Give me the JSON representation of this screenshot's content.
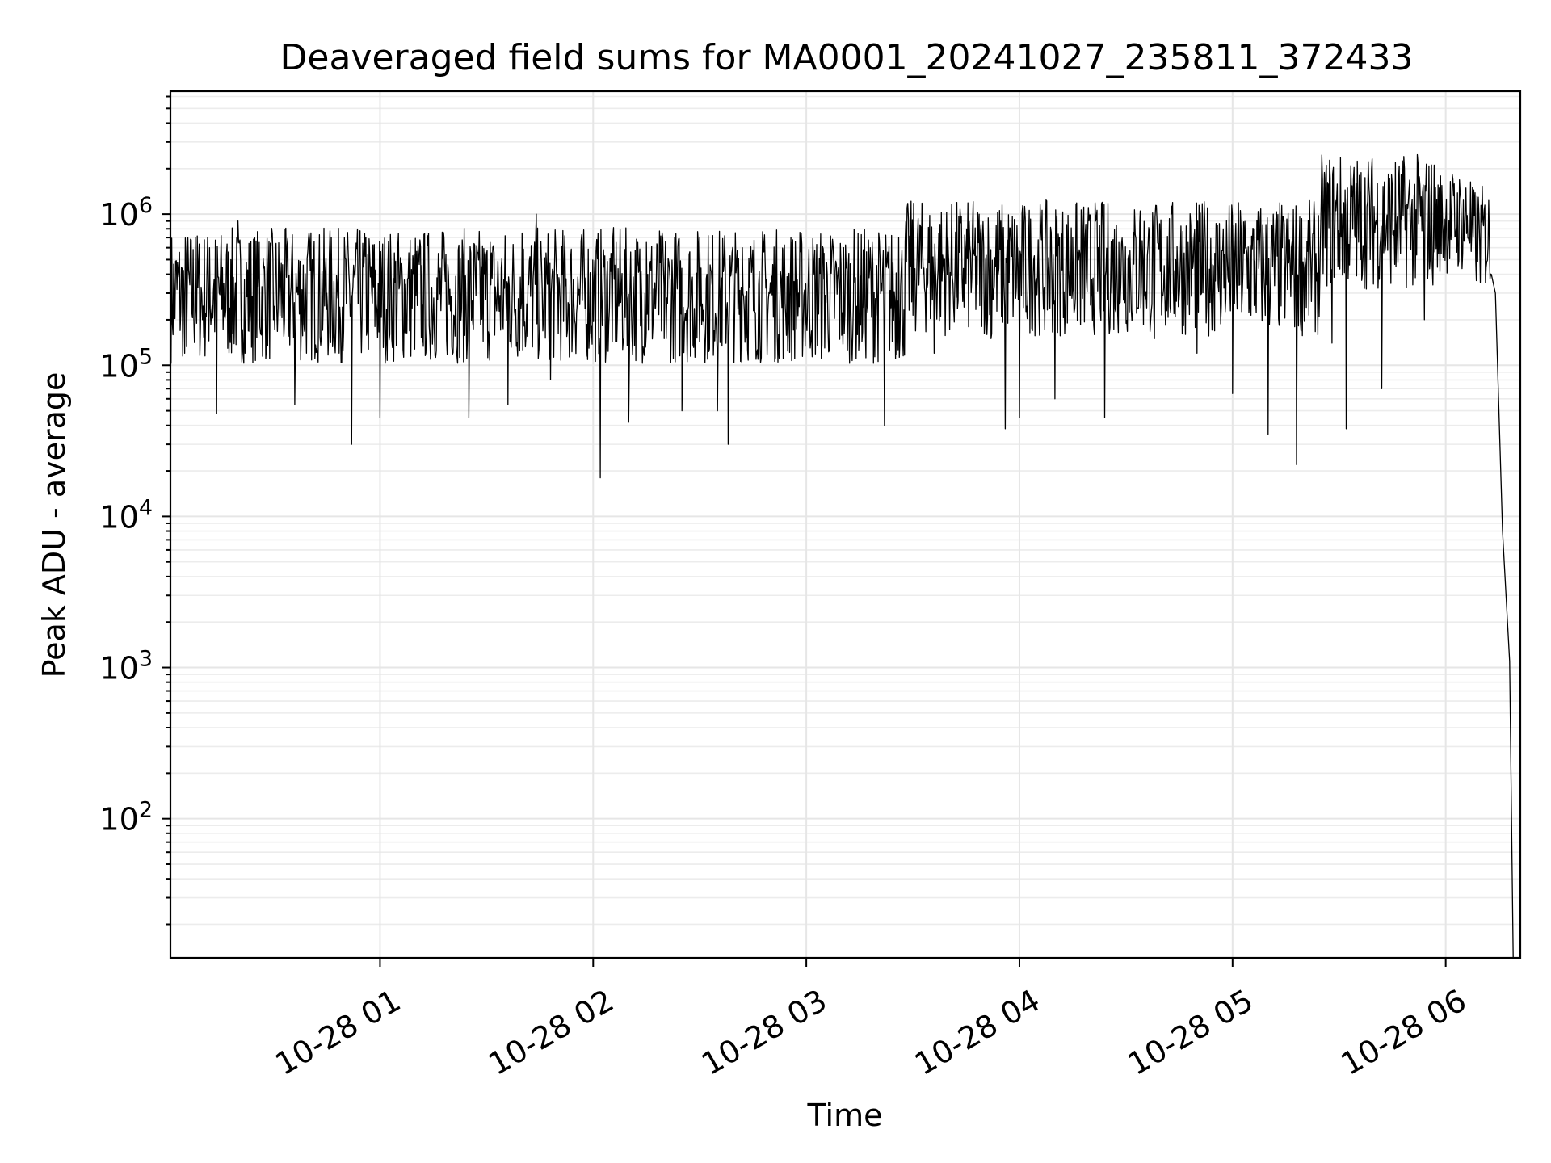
{
  "chart_data": {
    "type": "line",
    "title": "Deaveraged field sums for MA0001_20241027_235811_372433",
    "xlabel": "Time",
    "ylabel": "Peak ADU - average",
    "yscale": "log",
    "grid": true,
    "legend": "none",
    "xlim": [
      "2024-10-28 00:01",
      "2024-10-28 06:21"
    ],
    "ylim": [
      12,
      6500000
    ],
    "xticks": [
      {
        "value": "2024-10-28 01:00",
        "label": "10-28 01"
      },
      {
        "value": "2024-10-28 02:00",
        "label": "10-28 02"
      },
      {
        "value": "2024-10-28 03:00",
        "label": "10-28 03"
      },
      {
        "value": "2024-10-28 04:00",
        "label": "10-28 04"
      },
      {
        "value": "2024-10-28 05:00",
        "label": "10-28 05"
      },
      {
        "value": "2024-10-28 06:00",
        "label": "10-28 06"
      }
    ],
    "yticks": [
      {
        "value": 100,
        "base": "10",
        "exp": "2"
      },
      {
        "value": 1000,
        "base": "10",
        "exp": "3"
      },
      {
        "value": 10000,
        "base": "10",
        "exp": "4"
      },
      {
        "value": 100000,
        "base": "10",
        "exp": "5"
      },
      {
        "value": 1000000,
        "base": "10",
        "exp": "6"
      }
    ],
    "series": [
      {
        "color": "#000000",
        "points": [
          [
            "2024-10-28 00:01",
            250000
          ],
          [
            "2024-10-28 00:03",
            480000
          ],
          [
            "2024-10-28 00:05",
            120000
          ],
          [
            "2024-10-28 00:08",
            700000
          ],
          [
            "2024-10-28 00:10",
            200000
          ],
          [
            "2024-10-28 00:12",
            600000
          ],
          [
            "2024-10-28 00:14",
            48000
          ],
          [
            "2024-10-28 00:18",
            500000
          ],
          [
            "2024-10-28 00:20",
            900000
          ],
          [
            "2024-10-28 00:22",
            120000
          ],
          [
            "2024-10-28 00:26",
            650000
          ],
          [
            "2024-10-28 00:30",
            200000
          ],
          [
            "2024-10-28 00:36",
            55000
          ],
          [
            "2024-10-28 00:40",
            750000
          ],
          [
            "2024-10-28 00:45",
            300000
          ],
          [
            "2024-10-28 00:52",
            30000
          ],
          [
            "2024-10-28 00:56",
            700000
          ],
          [
            "2024-10-28 01:00",
            45000
          ],
          [
            "2024-10-28 01:05",
            600000
          ],
          [
            "2024-10-28 01:12",
            250000
          ],
          [
            "2024-10-28 01:18",
            700000
          ],
          [
            "2024-10-28 01:25",
            45000
          ],
          [
            "2024-10-28 01:31",
            650000
          ],
          [
            "2024-10-28 01:36",
            55000
          ],
          [
            "2024-10-28 01:40",
            750000
          ],
          [
            "2024-10-28 01:44",
            1000000
          ],
          [
            "2024-10-28 01:46",
            200000
          ],
          [
            "2024-10-28 01:48",
            80000
          ],
          [
            "2024-10-28 01:50",
            400000
          ],
          [
            "2024-10-28 02:02",
            18000
          ],
          [
            "2024-10-28 02:05",
            550000
          ],
          [
            "2024-10-28 02:10",
            42000
          ],
          [
            "2024-10-28 02:15",
            650000
          ],
          [
            "2024-10-28 02:20",
            150000
          ],
          [
            "2024-10-28 02:25",
            50000
          ],
          [
            "2024-10-28 02:30",
            700000
          ],
          [
            "2024-10-28 02:35",
            50000
          ],
          [
            "2024-10-28 02:38",
            30000
          ],
          [
            "2024-10-28 02:42",
            600000
          ],
          [
            "2024-10-28 02:50",
            300000
          ],
          [
            "2024-10-28 02:56",
            650000
          ],
          [
            "2024-10-28 03:00",
            200000
          ],
          [
            "2024-10-28 03:05",
            550000
          ],
          [
            "2024-10-28 03:12",
            200000
          ],
          [
            "2024-10-28 03:18",
            600000
          ],
          [
            "2024-10-28 03:22",
            40000
          ],
          [
            "2024-10-28 03:26",
            700000
          ],
          [
            "2024-10-28 03:32",
            850000
          ],
          [
            "2024-10-28 03:36",
            120000
          ],
          [
            "2024-10-28 03:40",
            550000
          ],
          [
            "2024-10-28 03:47",
            600000
          ],
          [
            "2024-10-28 03:52",
            150000
          ],
          [
            "2024-10-28 03:56",
            38000
          ],
          [
            "2024-10-28 04:00",
            45000
          ],
          [
            "2024-10-28 04:04",
            500000
          ],
          [
            "2024-10-28 04:10",
            60000
          ],
          [
            "2024-10-28 04:15",
            700000
          ],
          [
            "2024-10-28 04:20",
            250000
          ],
          [
            "2024-10-28 04:24",
            45000
          ],
          [
            "2024-10-28 04:28",
            650000
          ],
          [
            "2024-10-28 04:34",
            1050000
          ],
          [
            "2024-10-28 04:38",
            150000
          ],
          [
            "2024-10-28 04:44",
            500000
          ],
          [
            "2024-10-28 04:50",
            120000
          ],
          [
            "2024-10-28 04:55",
            550000
          ],
          [
            "2024-10-28 05:00",
            65000
          ],
          [
            "2024-10-28 05:05",
            600000
          ],
          [
            "2024-10-28 05:10",
            35000
          ],
          [
            "2024-10-28 05:14",
            600000
          ],
          [
            "2024-10-28 05:18",
            22000
          ],
          [
            "2024-10-28 05:22",
            500000
          ],
          [
            "2024-10-28 05:28",
            140000
          ],
          [
            "2024-10-28 05:32",
            38000
          ],
          [
            "2024-10-28 05:36",
            500000
          ],
          [
            "2024-10-28 05:42",
            70000
          ],
          [
            "2024-10-28 05:46",
            450000
          ],
          [
            "2024-10-28 05:50",
            800000
          ],
          [
            "2024-10-28 05:54",
            200000
          ],
          [
            "2024-10-28 05:58",
            550000
          ]
        ]
      }
    ]
  }
}
